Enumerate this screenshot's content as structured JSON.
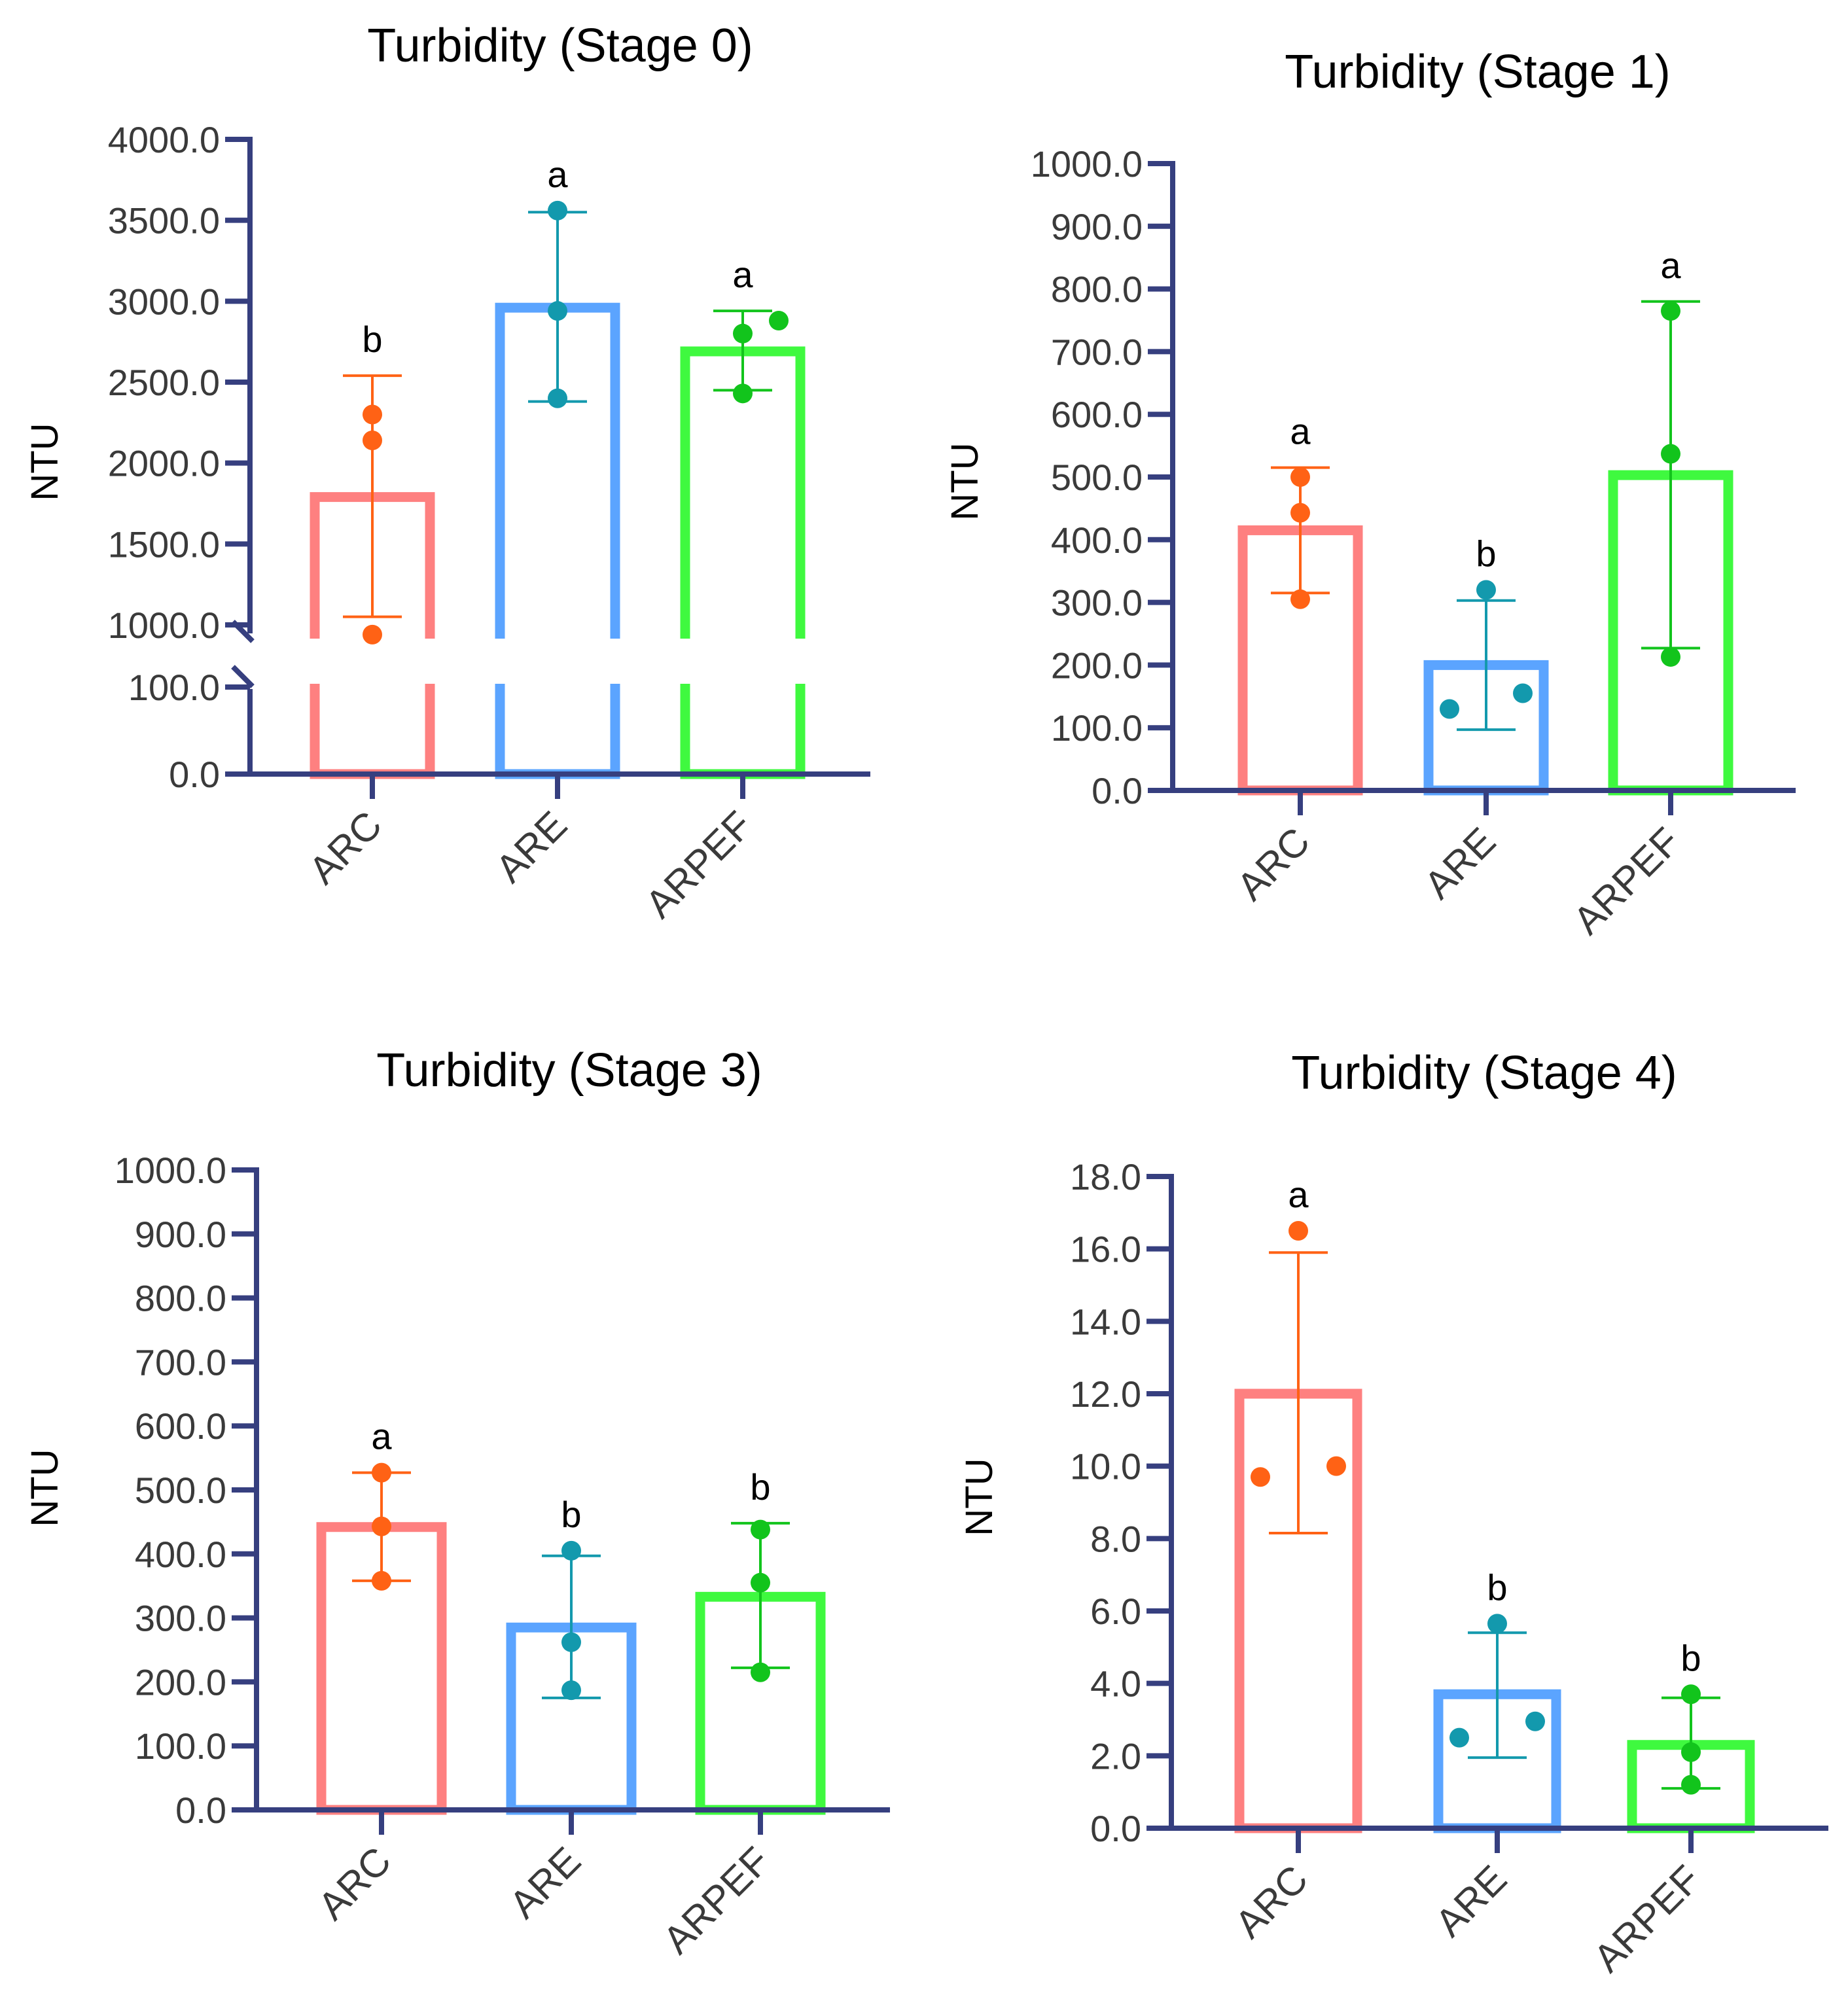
{
  "colors": {
    "axis": "#363f7f",
    "ARC_bar": "#fe8080",
    "ARC_dot": "#ff6215",
    "ARE_bar": "#5ba4ff",
    "ARE_dot": "#1399ad",
    "ARPEF_bar": "#3ff93f",
    "ARPEF_dot": "#12c41c"
  },
  "chart_data": [
    {
      "type": "bar",
      "title": "Turbidity (Stage 0)",
      "ylabel": "NTU",
      "categories": [
        "ARC",
        "ARE",
        "ARPEF"
      ],
      "axis_break": {
        "lower": [
          0,
          100
        ],
        "upper": [
          1000,
          4000
        ]
      },
      "ticks": [
        0,
        100,
        1000,
        1500,
        2000,
        2500,
        3000,
        3500,
        4000
      ],
      "tick_labels": [
        "0.0",
        "100.0",
        "1000.0",
        "1500.0",
        "2000.0",
        "2500.0",
        "3000.0",
        "3500.0",
        "4000.0"
      ],
      "bars": [
        {
          "category": "ARC",
          "mean": 1790,
          "err_low": 1050,
          "err_high": 2540,
          "points": [
            2300,
            2140,
            940
          ],
          "letter": "b"
        },
        {
          "category": "ARE",
          "mean": 2960,
          "err_low": 2380,
          "err_high": 3550,
          "points": [
            3560,
            2940,
            2400
          ],
          "letter": "a"
        },
        {
          "category": "ARPEF",
          "mean": 2690,
          "err_low": 2450,
          "err_high": 2940,
          "points": [
            2800,
            2880,
            2430
          ],
          "letter": "a"
        }
      ]
    },
    {
      "type": "bar",
      "title": "Turbidity (Stage 1)",
      "ylabel": "NTU",
      "categories": [
        "ARC",
        "ARE",
        "ARPEF"
      ],
      "ylim": [
        0,
        1000
      ],
      "ticks": [
        0,
        100,
        200,
        300,
        400,
        500,
        600,
        700,
        800,
        900,
        1000
      ],
      "tick_labels": [
        "0.0",
        "100.0",
        "200.0",
        "300.0",
        "400.0",
        "500.0",
        "600.0",
        "700.0",
        "800.0",
        "900.0",
        "1000.0"
      ],
      "bars": [
        {
          "category": "ARC",
          "mean": 415,
          "err_low": 315,
          "err_high": 515,
          "points": [
            500,
            443,
            305
          ],
          "letter": "a"
        },
        {
          "category": "ARE",
          "mean": 200,
          "err_low": 97,
          "err_high": 303,
          "points": [
            320,
            130,
            155
          ],
          "letter": "b"
        },
        {
          "category": "ARPEF",
          "mean": 503,
          "err_low": 227,
          "err_high": 780,
          "points": [
            765,
            537,
            213
          ],
          "letter": "a"
        }
      ]
    },
    {
      "type": "bar",
      "title": "Turbidity (Stage 3)",
      "ylabel": "NTU",
      "categories": [
        "ARC",
        "ARE",
        "ARPEF"
      ],
      "ylim": [
        0,
        1000
      ],
      "ticks": [
        0,
        100,
        200,
        300,
        400,
        500,
        600,
        700,
        800,
        900,
        1000
      ],
      "tick_labels": [
        "0.0",
        "100.0",
        "200.0",
        "300.0",
        "400.0",
        "500.0",
        "600.0",
        "700.0",
        "800.0",
        "900.0",
        "1000.0"
      ],
      "bars": [
        {
          "category": "ARC",
          "mean": 442,
          "err_low": 358,
          "err_high": 527,
          "points": [
            527,
            443,
            358
          ],
          "letter": "a"
        },
        {
          "category": "ARE",
          "mean": 285,
          "err_low": 175,
          "err_high": 397,
          "points": [
            405,
            262,
            187
          ],
          "letter": "b"
        },
        {
          "category": "ARPEF",
          "mean": 333,
          "err_low": 222,
          "err_high": 448,
          "points": [
            438,
            355,
            215
          ],
          "letter": "b"
        }
      ]
    },
    {
      "type": "bar",
      "title": "Turbidity (Stage 4)",
      "ylabel": "NTU",
      "categories": [
        "ARC",
        "ARE",
        "ARPEF"
      ],
      "ylim": [
        0,
        18
      ],
      "ticks": [
        0,
        2,
        4,
        6,
        8,
        10,
        12,
        14,
        16,
        18
      ],
      "tick_labels": [
        "0.0",
        "2.0",
        "4.0",
        "6.0",
        "8.0",
        "10.0",
        "12.0",
        "14.0",
        "16.0",
        "18.0"
      ],
      "bars": [
        {
          "category": "ARC",
          "mean": 12.0,
          "err_low": 8.15,
          "err_high": 15.9,
          "points": [
            16.5,
            9.7,
            10.0
          ],
          "letter": "a"
        },
        {
          "category": "ARE",
          "mean": 3.7,
          "err_low": 1.95,
          "err_high": 5.4,
          "points": [
            5.65,
            2.5,
            2.95
          ],
          "letter": "b"
        },
        {
          "category": "ARPEF",
          "mean": 2.3,
          "err_low": 1.1,
          "err_high": 3.6,
          "points": [
            3.7,
            2.1,
            1.2
          ],
          "letter": "b"
        }
      ]
    }
  ]
}
